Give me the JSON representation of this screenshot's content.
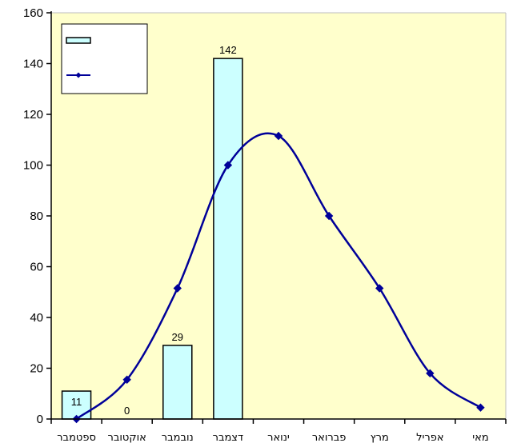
{
  "chart_data": {
    "type": "bar",
    "title": "",
    "xlabel": "",
    "ylabel": "",
    "ylim": [
      0,
      160
    ],
    "ytick_step": 20,
    "yticks": [
      "0",
      "20",
      "40",
      "60",
      "80",
      "100",
      "120",
      "140",
      "160"
    ],
    "categories": [
      "ספטמבר",
      "אוקטובר",
      "נובמבר",
      "דצמבר",
      "ינואר",
      "פברואר",
      "מרץ",
      "אפריל",
      "מאי"
    ],
    "series": [
      {
        "type": "bar",
        "values": [
          11,
          0,
          29,
          142,
          null,
          null,
          null,
          null,
          null
        ],
        "data_labels": [
          "11",
          "0",
          "29",
          "142",
          "",
          "",
          "",
          "",
          ""
        ],
        "color": "#ccffff"
      },
      {
        "type": "line",
        "values": [
          0,
          15.5,
          51.5,
          100,
          111.5,
          80,
          51.5,
          18,
          4.5
        ],
        "color": "#000099"
      }
    ],
    "legend": {
      "placement": "top-left"
    },
    "plot_background": "#ffffcc",
    "grid": false,
    "colors": {
      "axis": "#000000",
      "bar_stroke": "#000000",
      "line": "#000099"
    }
  }
}
